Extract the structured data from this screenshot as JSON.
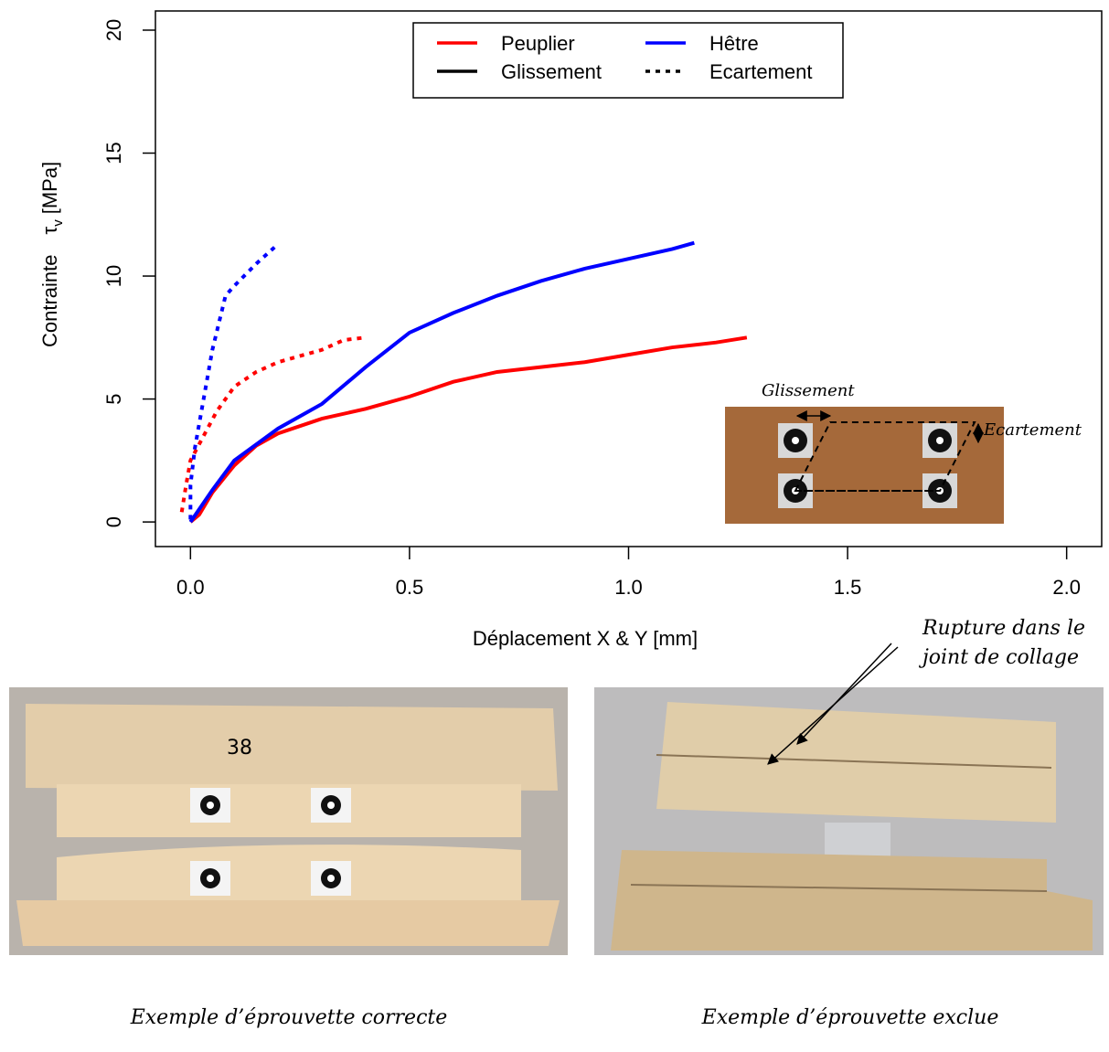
{
  "chart_data": {
    "type": "line",
    "x_label": "Déplacement X & Y [mm]",
    "y_label": [
      "Contrainte",
      "τ",
      "v",
      "[MPa]"
    ],
    "xlim": [
      -0.08,
      2.08
    ],
    "ylim": [
      -1.0,
      20.78
    ],
    "xticks": [
      {
        "value": 0,
        "label": "0.0"
      },
      0.5,
      {
        "value": 1,
        "label": "1.0"
      },
      1.5,
      {
        "value": 2,
        "label": "2.0"
      }
    ],
    "yticks": [
      0,
      5,
      10,
      15,
      20
    ],
    "legend_items": [
      {
        "label": "Peuplier",
        "color": "#ff0000",
        "dash": "solid"
      },
      {
        "label": "Hêtre",
        "color": "#0000ff",
        "dash": "solid"
      },
      {
        "label": "Glissement",
        "color": "#000000",
        "dash": "solid"
      },
      {
        "label": "Ecartement",
        "color": "#000000",
        "dash": "dotted"
      }
    ],
    "series": [
      {
        "color": "#ff0000",
        "dash": "solid",
        "x": [
          0,
          0.02,
          0.05,
          0.1,
          0.15,
          0.2,
          0.3,
          0.4,
          0.5,
          0.6,
          0.7,
          0.8,
          0.9,
          1.0,
          1.1,
          1.2,
          1.27
        ],
        "values": [
          0,
          0.3,
          1.2,
          2.3,
          3.1,
          3.6,
          4.2,
          4.6,
          5.1,
          5.7,
          6.1,
          6.3,
          6.5,
          6.8,
          7.1,
          7.3,
          7.5
        ]
      },
      {
        "color": "#0000ff",
        "dash": "solid",
        "x": [
          0,
          0.05,
          0.1,
          0.2,
          0.3,
          0.4,
          0.5,
          0.6,
          0.7,
          0.8,
          0.9,
          1.0,
          1.1,
          1.15
        ],
        "values": [
          0,
          1.3,
          2.5,
          3.8,
          4.8,
          6.3,
          7.7,
          8.5,
          9.2,
          9.8,
          10.3,
          10.7,
          11.1,
          11.35
        ]
      },
      {
        "color": "#ff0000",
        "dash": "dotted",
        "x": [
          -0.02,
          -0.01,
          0.0,
          0.03,
          0.06,
          0.1,
          0.15,
          0.2,
          0.3,
          0.35,
          0.4
        ],
        "values": [
          0.4,
          1.5,
          2.5,
          3.5,
          4.5,
          5.5,
          6.1,
          6.5,
          7.0,
          7.4,
          7.5
        ]
      },
      {
        "color": "#0000ff",
        "dash": "dotted",
        "x": [
          0,
          0,
          0.01,
          0.03,
          0.05,
          0.08,
          0.1,
          0.15,
          0.2
        ],
        "values": [
          0.1,
          1.5,
          3,
          5,
          7,
          9.2,
          9.6,
          10.5,
          11.3
        ]
      }
    ]
  },
  "inset": {
    "slip_label": "Glissement",
    "gap_label": "Ecartement"
  },
  "annotation": {
    "lines": [
      "Rupture dans le",
      "joint de collage"
    ]
  },
  "photos": [
    {
      "marking": "38",
      "caption": "Exemple d’éprouvette correcte"
    },
    {
      "caption": "Exemple d’éprouvette exclue"
    }
  ]
}
